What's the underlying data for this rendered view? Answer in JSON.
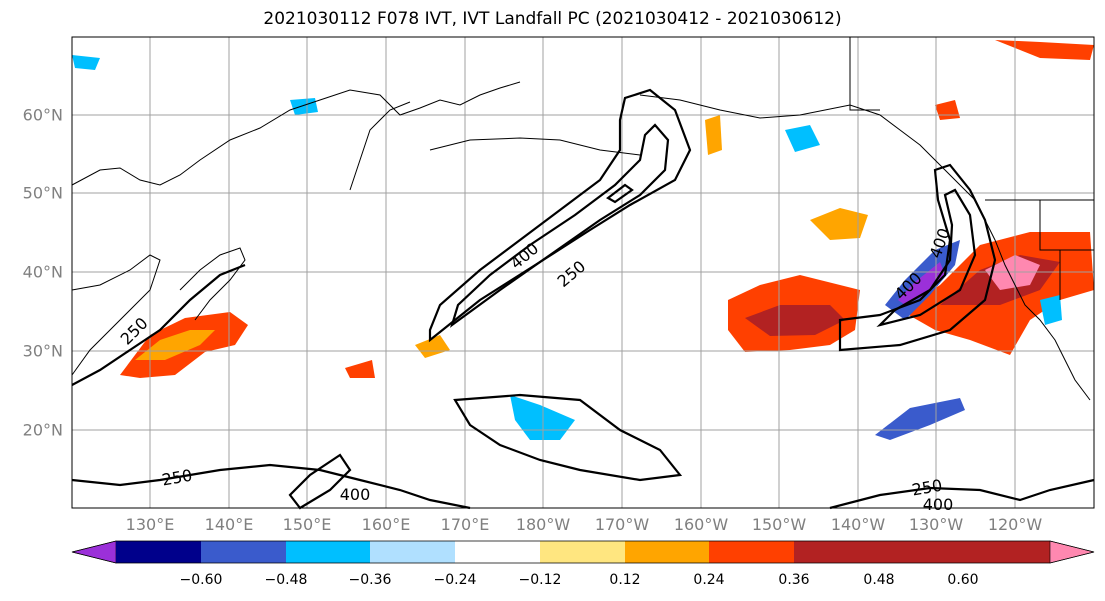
{
  "title": "2021030112 F078 IVT, IVT Landfall PC (2021030412 - 2021030612)",
  "map": {
    "lat_labels": [
      "60°N",
      "50°N",
      "40°N",
      "30°N",
      "20°N"
    ],
    "lon_labels": [
      "130°E",
      "140°E",
      "150°E",
      "160°E",
      "170°E",
      "180°W",
      "170°W",
      "160°W",
      "150°W",
      "140°W",
      "130°W",
      "120°W"
    ],
    "contour_labels": [
      "400",
      "250",
      "250",
      "250",
      "400",
      "250",
      "400",
      "400",
      "400"
    ],
    "contour_line_color": "#000000",
    "grid_color": "#a0a0a0"
  },
  "colorbar": {
    "colors": [
      "#9b30d9",
      "#00008b",
      "#3a5bcc",
      "#00bfff",
      "#b0e0ff",
      "#ffffff",
      "#ffe680",
      "#ffa500",
      "#ff4000",
      "#b22222",
      "#ff88b0"
    ],
    "tick_labels": [
      "−0.60",
      "−0.48",
      "−0.36",
      "−0.24",
      "−0.12",
      "0.12",
      "0.24",
      "0.36",
      "0.48",
      "0.60"
    ]
  }
}
